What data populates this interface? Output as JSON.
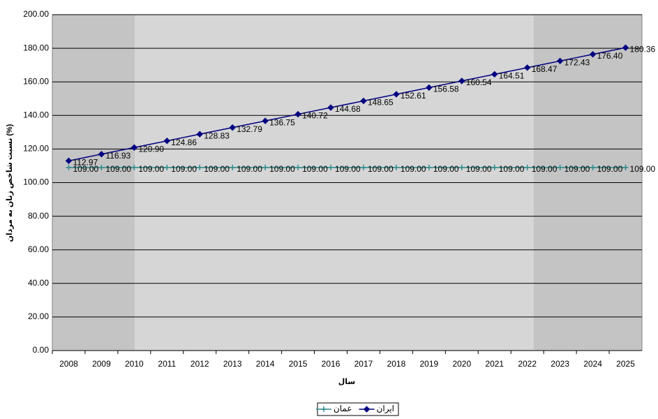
{
  "chart_data": {
    "type": "line",
    "x_label": "سال",
    "y_label": "نسبت شاخص زنان به مردان (%)",
    "categories": [
      "2008",
      "2009",
      "2010",
      "2011",
      "2012",
      "2013",
      "2014",
      "2015",
      "2016",
      "2017",
      "2018",
      "2019",
      "2020",
      "2021",
      "2022",
      "2023",
      "2024",
      "2025"
    ],
    "series": [
      {
        "name": "ایران",
        "color": "#000080",
        "marker": "diamond",
        "values": [
          112.97,
          116.93,
          120.9,
          124.86,
          128.83,
          132.79,
          136.75,
          140.72,
          144.68,
          148.65,
          152.61,
          156.58,
          160.54,
          164.51,
          168.47,
          172.43,
          176.4,
          180.36
        ],
        "value_labels": [
          "112.97",
          "116.93",
          "120.90",
          "124.86",
          "128.83",
          "132.79",
          "136.75",
          "140.72",
          "144.68",
          "148.65",
          "152.61",
          "156.58",
          "160.54",
          "164.51",
          "168.47",
          "172.43",
          "176.40",
          "180.36"
        ]
      },
      {
        "name": "عمان",
        "color": "#2e8b8b",
        "marker": "plus",
        "values": [
          109,
          109,
          109,
          109,
          109,
          109,
          109,
          109,
          109,
          109,
          109,
          109,
          109,
          109,
          109,
          109,
          109,
          109
        ],
        "value_labels": [
          "109.00",
          "109.00",
          "109.00",
          "109.00",
          "109.00",
          "109.00",
          "109.00",
          "109.00",
          "109.00",
          "109.00",
          "109.00",
          "109.00",
          "109.00",
          "109.00",
          "109.00",
          "109.00",
          "109.00",
          "109.00"
        ]
      }
    ],
    "ylim": [
      0,
      200
    ],
    "yticks": [
      {
        "value": 0,
        "label": "0.00"
      },
      {
        "value": 20,
        "label": "20.00"
      },
      {
        "value": 40,
        "label": "40.00"
      },
      {
        "value": 60,
        "label": "60.00"
      },
      {
        "value": 80,
        "label": "80.00"
      },
      {
        "value": 100,
        "label": "100.00"
      },
      {
        "value": 120,
        "label": "120.00"
      },
      {
        "value": 140,
        "label": "140.00"
      },
      {
        "value": 160,
        "label": "160.00"
      },
      {
        "value": 180,
        "label": "180.00"
      },
      {
        "value": 200,
        "label": "200.00"
      }
    ],
    "grid": true,
    "legend": "bottom"
  }
}
